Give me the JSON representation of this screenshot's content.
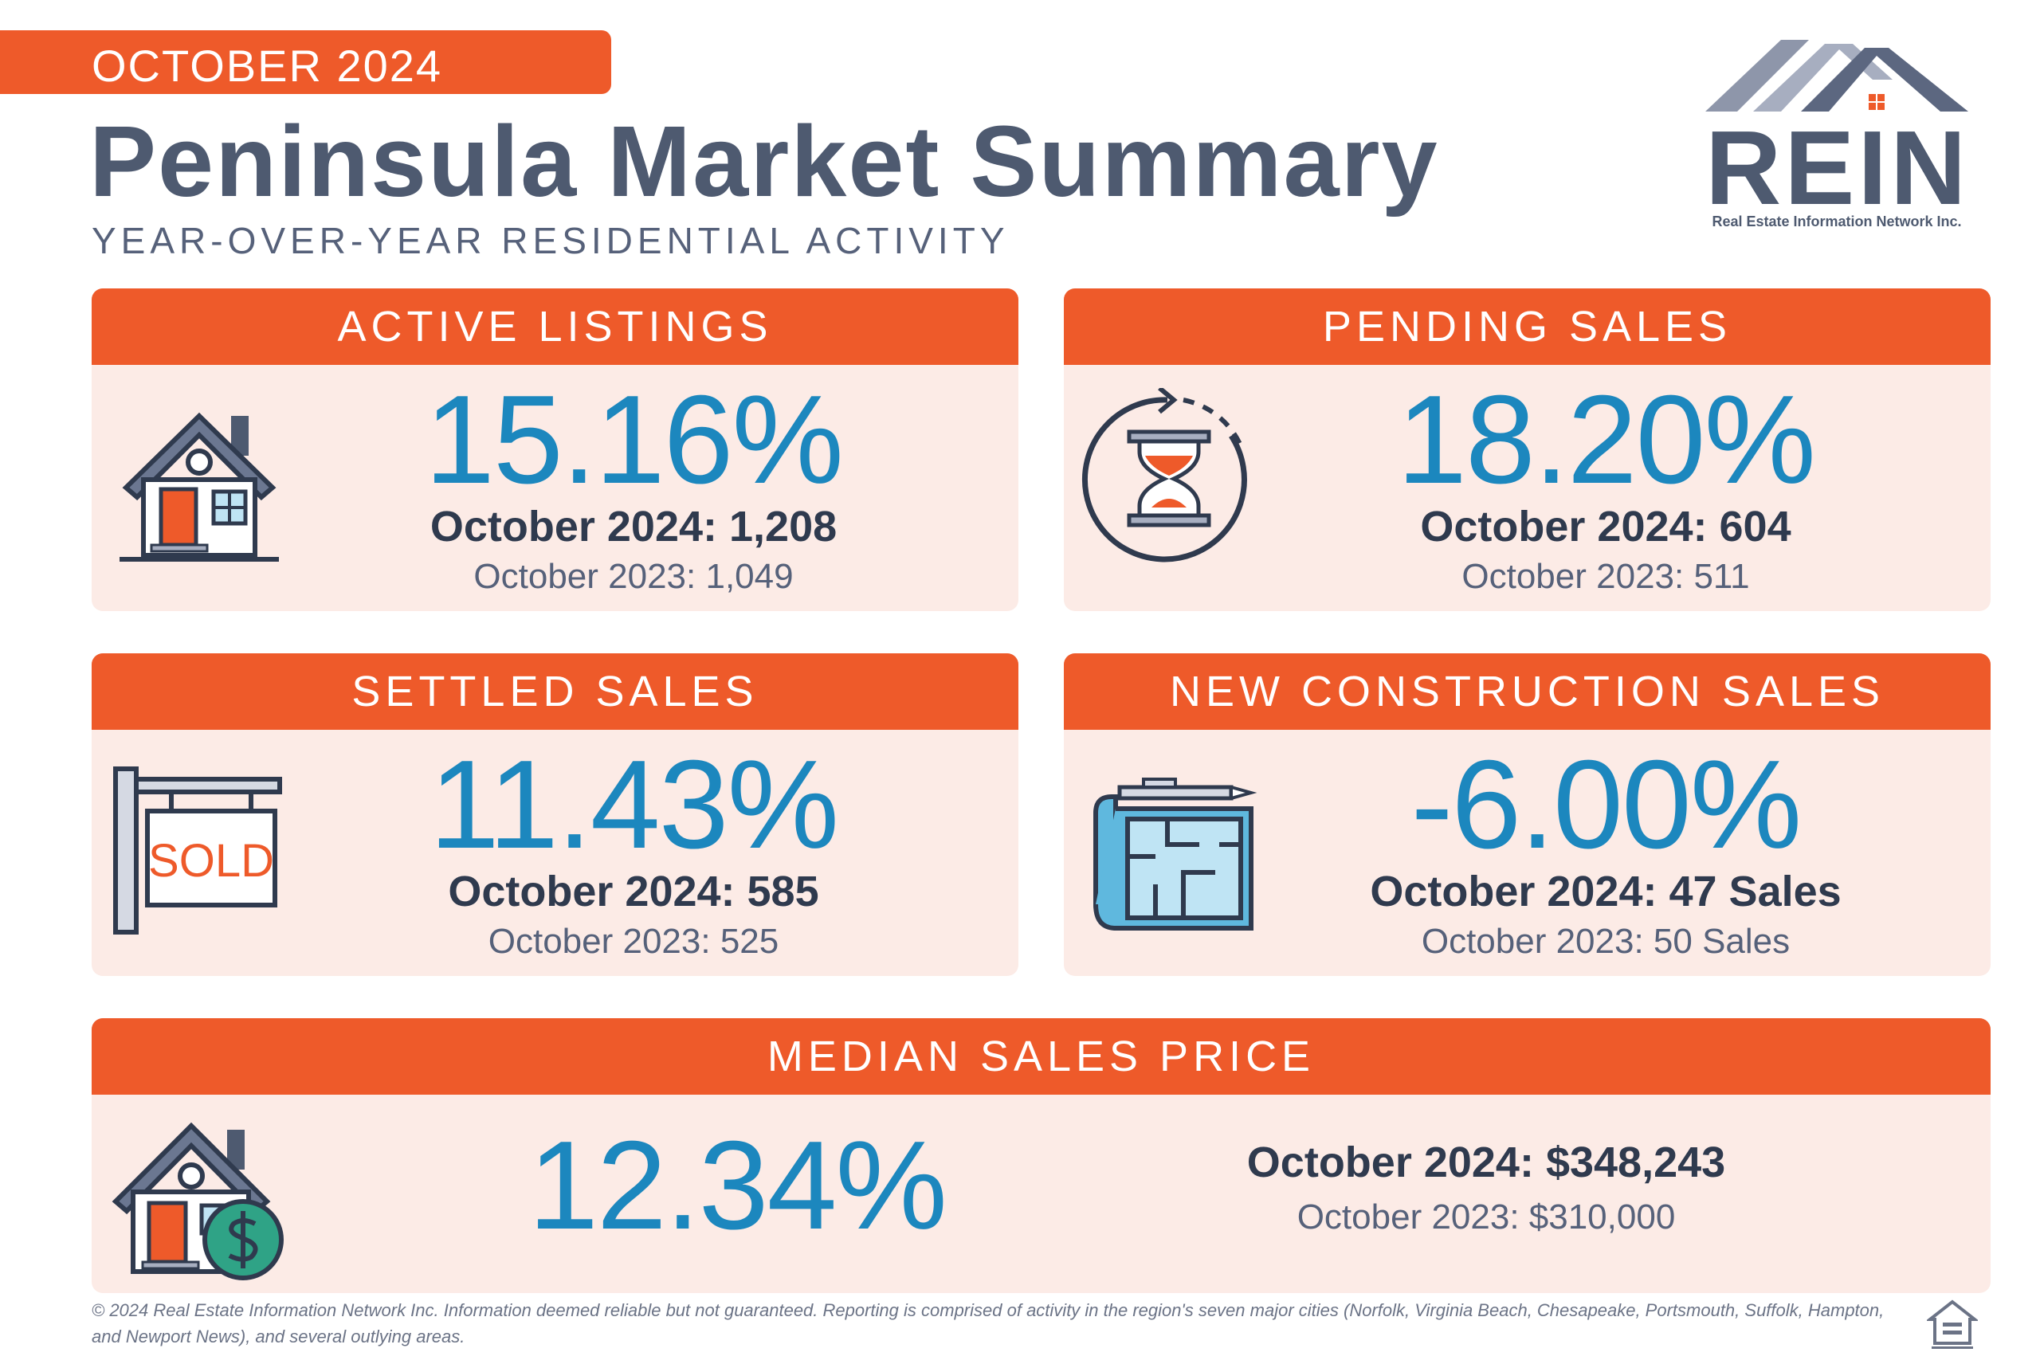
{
  "header": {
    "month_tag": "OCTOBER 2024",
    "title": "Peninsula Market Summary",
    "subtitle": "YEAR-OVER-YEAR RESIDENTIAL ACTIVITY"
  },
  "logo": {
    "text": "REIN",
    "tagline": "Real Estate Information Network Inc."
  },
  "cards": {
    "active_listings": {
      "title": "ACTIVE LISTINGS",
      "percent": "15.16%",
      "current": "October 2024: 1,208",
      "previous": "October 2023: 1,049",
      "icon": "house-icon"
    },
    "pending_sales": {
      "title": "PENDING SALES",
      "percent": "18.20%",
      "current": "October 2024: 604",
      "previous": "October 2023: 511",
      "icon": "hourglass-icon"
    },
    "settled_sales": {
      "title": "SETTLED SALES",
      "percent": "11.43%",
      "current": "October 2024: 585",
      "previous": "October 2023: 525",
      "icon": "sold-sign-icon",
      "sign_text": "SOLD"
    },
    "new_construction": {
      "title": "NEW CONSTRUCTION SALES",
      "percent": "-6.00%",
      "current": "October 2024: 47 Sales",
      "previous": "October 2023: 50 Sales",
      "icon": "blueprint-icon"
    },
    "median_price": {
      "title": "MEDIAN SALES PRICE",
      "percent": "12.34%",
      "current": "October 2024: $348,243",
      "previous": "October 2023: $310,000",
      "icon": "house-dollar-icon"
    }
  },
  "footer": {
    "disclaimer": "© 2024 Real Estate Information Network Inc. Information deemed reliable but not guaranteed. Reporting is comprised of activity in the region's seven major cities (Norfolk, Virginia Beach, Chesapeake, Portsmouth, Suffolk, Hampton, and Newport News), and several outlying areas.",
    "logo_icon": "equal-housing-opportunity-icon"
  },
  "colors": {
    "accent": "#ee5a2a",
    "panel": "#fcebe6",
    "percent": "#1c87be",
    "dark": "#2f3a4e",
    "slate": "#4e5a70"
  }
}
